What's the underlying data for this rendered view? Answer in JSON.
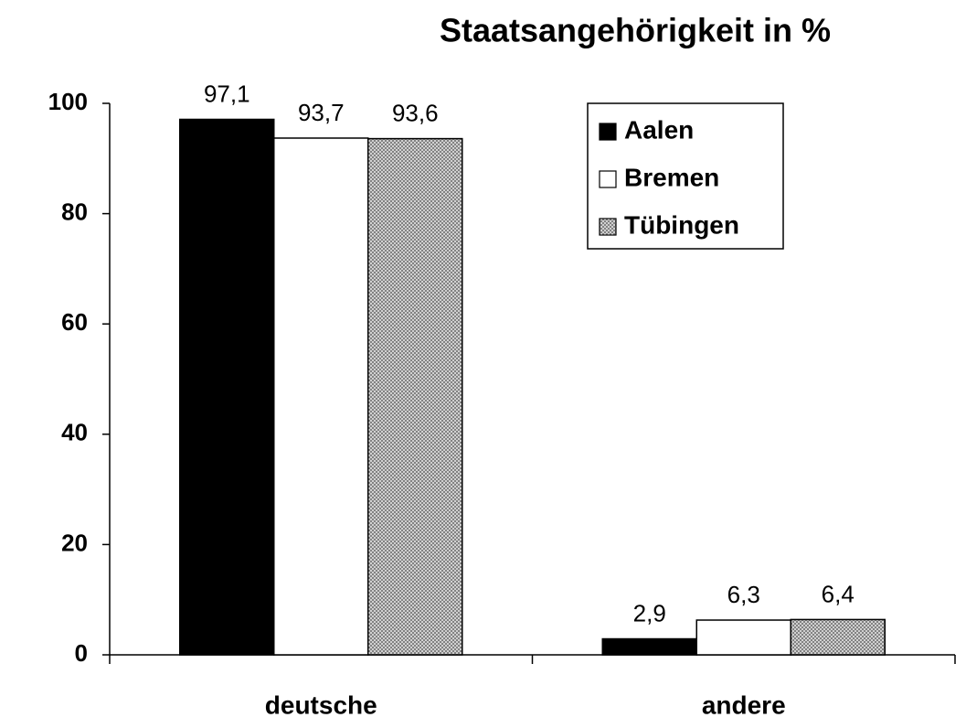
{
  "chart_data": {
    "type": "bar",
    "title": "Staatsangehörigkeit in %",
    "categories": [
      "deutsche",
      "andere"
    ],
    "series": [
      {
        "name": "Aalen",
        "color": "#000000",
        "values": [
          97.1,
          2.9
        ],
        "value_labels": [
          "97,1",
          "2,9"
        ]
      },
      {
        "name": "Bremen",
        "color": "#ffffff",
        "values": [
          93.7,
          6.3
        ],
        "value_labels": [
          "93,7",
          "6,3"
        ]
      },
      {
        "name": "Tübingen",
        "color": "#808080",
        "pattern": "crosshatch",
        "values": [
          93.6,
          6.4
        ],
        "value_labels": [
          "93,6",
          "6,4"
        ]
      }
    ],
    "ylim": [
      0,
      100
    ],
    "yticks": [
      0,
      20,
      40,
      60,
      80,
      100
    ],
    "grid": false,
    "legend": "top-right"
  }
}
